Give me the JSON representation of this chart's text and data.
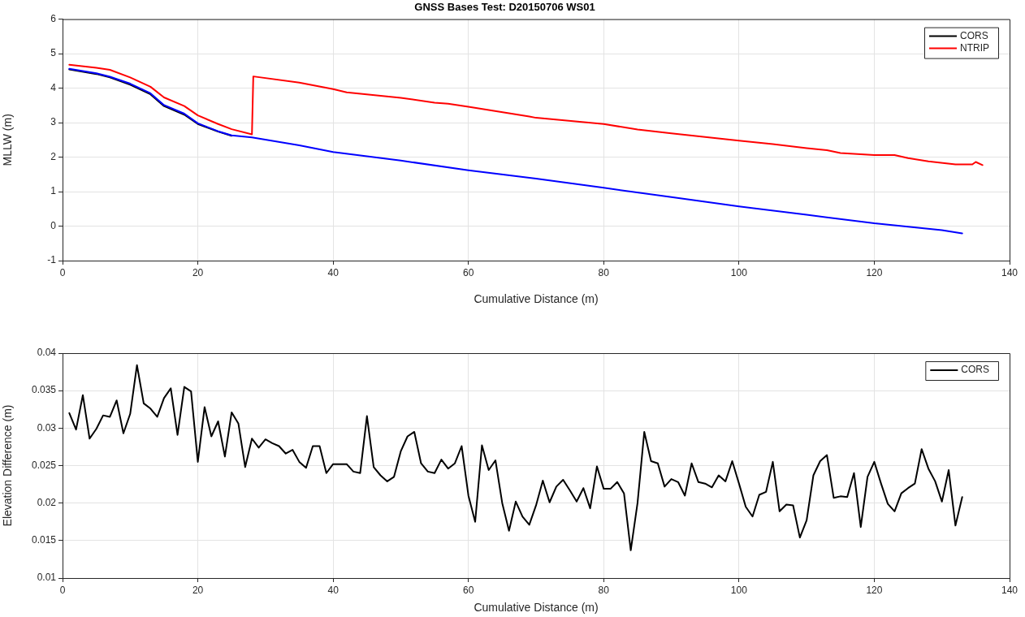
{
  "chart_data": [
    {
      "type": "line",
      "title": "GNSS Bases Test: D20150706 WS01",
      "xlabel": "Cumulative Distance (m)",
      "ylabel": "MLLW (m)",
      "xlim": [
        0,
        140
      ],
      "xticks": [
        0,
        20,
        40,
        60,
        80,
        100,
        120,
        140
      ],
      "ylim": [
        -1,
        6
      ],
      "yticks": [
        -1,
        0,
        1,
        2,
        3,
        4,
        5,
        6
      ],
      "grid": true,
      "legend": "top right",
      "series": [
        {
          "name": "CORS",
          "color": "#000000",
          "x": [
            1,
            5,
            7,
            10,
            13,
            15,
            18,
            20,
            23,
            25
          ],
          "values": [
            4.54,
            4.41,
            4.31,
            4.1,
            3.82,
            3.48,
            3.23,
            2.96,
            2.74,
            2.62
          ]
        },
        {
          "color": "#0000ff",
          "x": [
            1,
            5,
            7,
            10,
            13,
            15,
            18,
            20,
            23,
            25,
            28,
            35,
            40,
            50,
            60,
            70,
            80,
            90,
            100,
            110,
            120,
            130,
            133
          ],
          "values": [
            4.56,
            4.43,
            4.33,
            4.13,
            3.85,
            3.51,
            3.26,
            2.98,
            2.75,
            2.63,
            2.57,
            2.34,
            2.15,
            1.9,
            1.62,
            1.38,
            1.11,
            0.84,
            0.57,
            0.33,
            0.08,
            -0.12,
            -0.21
          ]
        },
        {
          "name": "NTRIP",
          "color": "#ff0000",
          "x": [
            1,
            5,
            7,
            10,
            13,
            15,
            18,
            20,
            23,
            25,
            28,
            28.2,
            35,
            40,
            42,
            50,
            55,
            57,
            60,
            69,
            70,
            80,
            85,
            90,
            100,
            105,
            110,
            113,
            115,
            120,
            123,
            125,
            128,
            132,
            134.5,
            135,
            136
          ],
          "values": [
            4.68,
            4.59,
            4.53,
            4.31,
            4.04,
            3.73,
            3.48,
            3.21,
            2.96,
            2.81,
            2.66,
            4.34,
            4.16,
            3.97,
            3.88,
            3.72,
            3.58,
            3.55,
            3.46,
            3.18,
            3.14,
            2.96,
            2.8,
            2.69,
            2.48,
            2.38,
            2.26,
            2.2,
            2.12,
            2.06,
            2.06,
            1.97,
            1.88,
            1.79,
            1.79,
            1.86,
            1.77
          ]
        }
      ]
    },
    {
      "type": "line",
      "xlabel": "Cumulative Distance (m)",
      "ylabel": "Elevation Difference (m)",
      "xlim": [
        0,
        140
      ],
      "xticks": [
        0,
        20,
        40,
        60,
        80,
        100,
        120,
        140
      ],
      "ylim": [
        0.01,
        0.04
      ],
      "yticks": [
        0.01,
        0.015,
        0.02,
        0.025,
        0.03,
        0.035,
        0.04
      ],
      "grid": true,
      "legend": "top right",
      "x": [
        1,
        2,
        3,
        4,
        5,
        6,
        7,
        8,
        9,
        10,
        11,
        12,
        13,
        14,
        15,
        16,
        17,
        18,
        19,
        20,
        21,
        22,
        23,
        24,
        25,
        26,
        27,
        28,
        29,
        30,
        31,
        32,
        33,
        34,
        35,
        36,
        37,
        38,
        39,
        40,
        41,
        42,
        43,
        44,
        45,
        46,
        47,
        48,
        49,
        50,
        51,
        52,
        53,
        54,
        55,
        56,
        57,
        58,
        59,
        60,
        61,
        62,
        63,
        64,
        65,
        66,
        67,
        68,
        69,
        70,
        71,
        72,
        73,
        74,
        75,
        76,
        77,
        78,
        79,
        80,
        81,
        82,
        83,
        84,
        85,
        86,
        87,
        88,
        89,
        90,
        91,
        92,
        93,
        94,
        95,
        96,
        97,
        98,
        99,
        100,
        101,
        102,
        103,
        104,
        105,
        106,
        107,
        108,
        109,
        110,
        111,
        112,
        113,
        114,
        115,
        116,
        117,
        118,
        119,
        120,
        121,
        122,
        123,
        124,
        125,
        126,
        127,
        128,
        129,
        130,
        131,
        132,
        133
      ],
      "series": [
        {
          "name": "CORS",
          "color": "#000000",
          "values": [
            0.032,
            0.0298,
            0.0344,
            0.0286,
            0.0299,
            0.0317,
            0.0315,
            0.0337,
            0.0293,
            0.0319,
            0.0384,
            0.0333,
            0.0326,
            0.0315,
            0.034,
            0.0353,
            0.0291,
            0.0355,
            0.0349,
            0.0255,
            0.0328,
            0.0289,
            0.0309,
            0.0262,
            0.0321,
            0.0306,
            0.0248,
            0.0286,
            0.0274,
            0.0285,
            0.028,
            0.0276,
            0.0266,
            0.0271,
            0.0255,
            0.0247,
            0.0276,
            0.0276,
            0.024,
            0.0252,
            0.0252,
            0.0252,
            0.0242,
            0.024,
            0.0316,
            0.0248,
            0.0237,
            0.0229,
            0.0235,
            0.0269,
            0.0289,
            0.0295,
            0.0253,
            0.0242,
            0.024,
            0.0258,
            0.0246,
            0.0253,
            0.0276,
            0.021,
            0.0175,
            0.0277,
            0.0244,
            0.0257,
            0.02,
            0.0163,
            0.0202,
            0.0182,
            0.0171,
            0.0197,
            0.023,
            0.0201,
            0.0222,
            0.0231,
            0.0217,
            0.0202,
            0.022,
            0.0193,
            0.0249,
            0.0219,
            0.0219,
            0.0228,
            0.0213,
            0.0137,
            0.02,
            0.0295,
            0.0256,
            0.0253,
            0.0222,
            0.0232,
            0.0228,
            0.021,
            0.0253,
            0.0228,
            0.0226,
            0.0221,
            0.0237,
            0.0229,
            0.0256,
            0.0226,
            0.0195,
            0.0182,
            0.0211,
            0.0215,
            0.0255,
            0.0189,
            0.0198,
            0.0197,
            0.0154,
            0.0177,
            0.0237,
            0.0256,
            0.0264,
            0.0207,
            0.0209,
            0.0208,
            0.024,
            0.0168,
            0.0235,
            0.0255,
            0.0226,
            0.0199,
            0.0189,
            0.0213,
            0.022,
            0.0226,
            0.0272,
            0.0246,
            0.0229,
            0.0202,
            0.0244,
            0.017,
            0.0208
          ]
        }
      ]
    }
  ]
}
